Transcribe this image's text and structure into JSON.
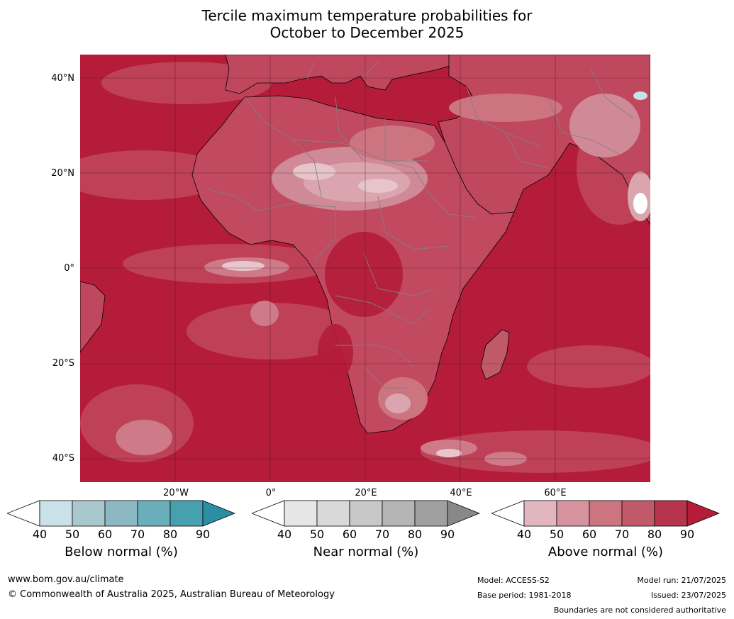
{
  "title_line1": "Tercile maximum temperature probabilities for",
  "title_line2": "October to December 2025",
  "map": {
    "lat_labels": [
      "40°N",
      "20°N",
      "0°",
      "20°S",
      "40°S"
    ],
    "lon_labels": [
      "20°W",
      "0°",
      "20°E",
      "40°E",
      "60°E"
    ],
    "ocean_color": "#b41c3a",
    "land_outline_color": "#000000",
    "border_color": "#808080"
  },
  "colorbars": [
    {
      "label": "Below normal (%)",
      "ticks": [
        "40",
        "50",
        "60",
        "70",
        "80",
        "90"
      ],
      "colors": [
        "#ffffff",
        "#c9e2e8",
        "#a9c8cd",
        "#8bb8c2",
        "#6aaebc",
        "#46a0b0",
        "#2a8fa3"
      ]
    },
    {
      "label": "Near normal (%)",
      "ticks": [
        "40",
        "50",
        "60",
        "70",
        "80",
        "90"
      ],
      "colors": [
        "#ffffff",
        "#e6e6e6",
        "#d9d9d9",
        "#c8c8c8",
        "#b5b5b5",
        "#a0a0a0",
        "#888888"
      ]
    },
    {
      "label": "Above normal (%)",
      "ticks": [
        "40",
        "50",
        "60",
        "70",
        "80",
        "90"
      ],
      "colors": [
        "#ffffff",
        "#e2b6bf",
        "#d6939d",
        "#cc7480",
        "#c05a6a",
        "#b7344d",
        "#b41c3a"
      ]
    }
  ],
  "footer": {
    "website": "www.bom.gov.au/climate",
    "copyright": "© Commonwealth of Australia 2025, Australian Bureau of Meteorology",
    "model": "Model: ACCESS-S2",
    "base_period": "Base period: 1981-2018",
    "model_run": "Model run: 21/07/2025",
    "issued": "Issued: 23/07/2025",
    "disclaimer": "Boundaries are not considered authoritative"
  }
}
